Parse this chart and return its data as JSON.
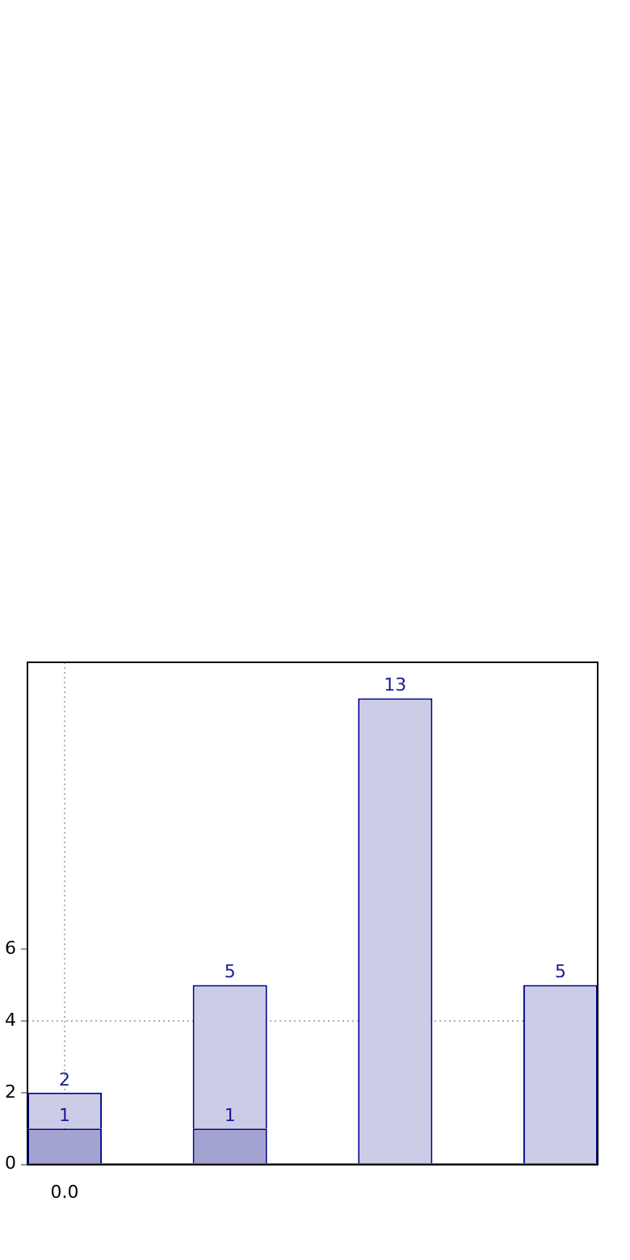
{
  "chart_data": {
    "type": "bar",
    "categories": [
      "0.0",
      null,
      null,
      null
    ],
    "ylim": [
      0,
      14
    ],
    "yticks": [
      0,
      2,
      4,
      6
    ],
    "series": [
      {
        "color": "#a3a3d1",
        "values": [
          1,
          1,
          null,
          null
        ],
        "value_labels": [
          "1",
          "1",
          null,
          null
        ]
      },
      {
        "color": "#cccce6",
        "values": [
          1,
          4,
          13,
          5
        ]
      }
    ],
    "stacked": true,
    "totals": [
      "2",
      "5",
      "13",
      "5"
    ],
    "ref_lines": [
      {
        "axis": "y",
        "value": 4,
        "color": "#b0b0b0",
        "line_style": "dotted"
      },
      {
        "axis": "x",
        "value": "0.0",
        "color": "#b0b0b0",
        "line_style": "dotted"
      }
    ],
    "grid": false,
    "legend": false
  }
}
